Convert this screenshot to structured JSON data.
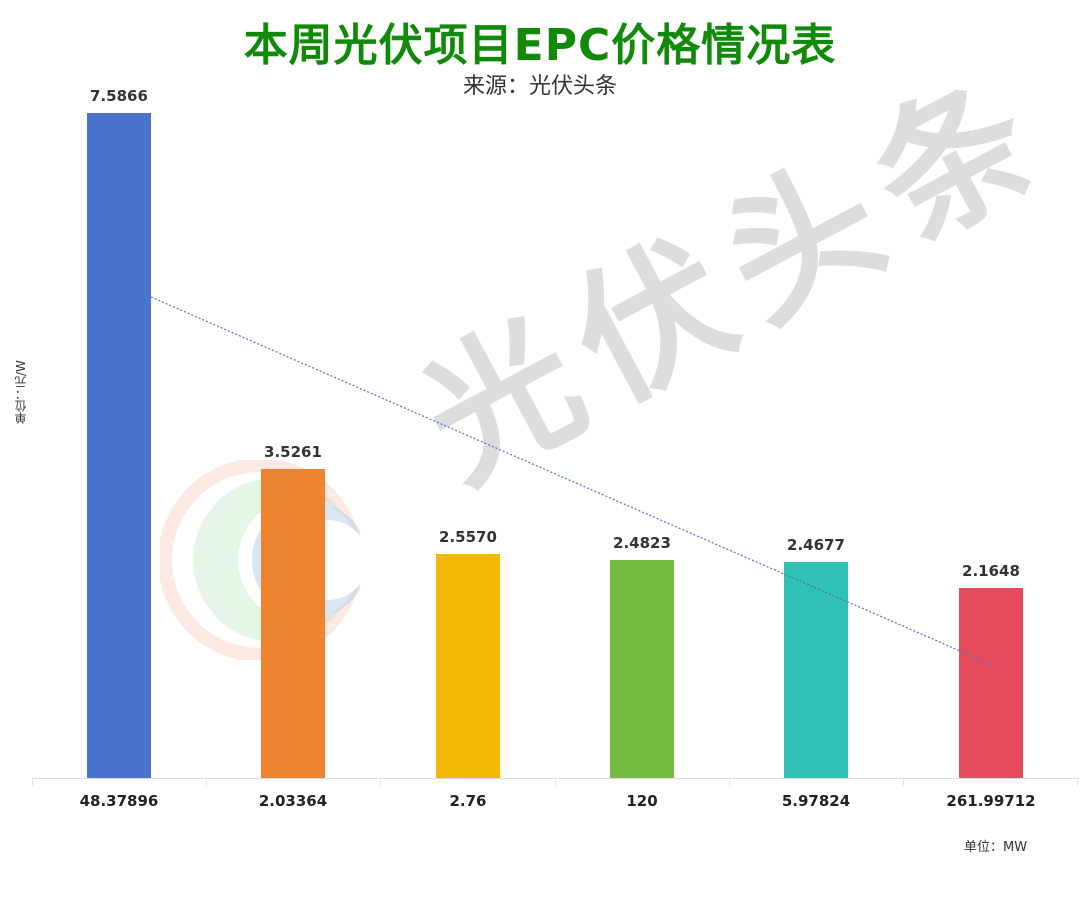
{
  "title": "本周光伏项目EPC价格情况表",
  "subtitle": "来源：光伏头条",
  "watermark": "光伏头条",
  "y_unit_label": "单位：元/W",
  "x_unit_label": "单位：MW",
  "colors": {
    "title": "#118a0a",
    "trendline": "#4a72c4",
    "bars": [
      "#4a74cc",
      "#ef8430",
      "#f2b904",
      "#77bc42",
      "#2fc1b5",
      "#e44c5e"
    ]
  },
  "chart_data": {
    "type": "bar",
    "title": "本周光伏项目EPC价格情况表",
    "subtitle": "来源：光伏头条",
    "xlabel": "单位：MW",
    "ylabel": "单位：元/W",
    "categories": [
      "48.37896",
      "2.03364",
      "2.76",
      "120",
      "5.97824",
      "261.99712"
    ],
    "values": [
      7.5866,
      3.5261,
      2.557,
      2.4823,
      2.4677,
      2.1648
    ],
    "value_labels": [
      "7.5866",
      "3.5261",
      "2.5570",
      "2.4823",
      "2.4677",
      "2.1648"
    ],
    "ylim": [
      0,
      7.6
    ],
    "grid": false,
    "legend": "none",
    "annotations": [
      "linear trendline (dotted, blue)"
    ],
    "trendline": {
      "type": "linear",
      "style": "dotted",
      "start_value": 5.5,
      "end_value": 1.3
    }
  }
}
